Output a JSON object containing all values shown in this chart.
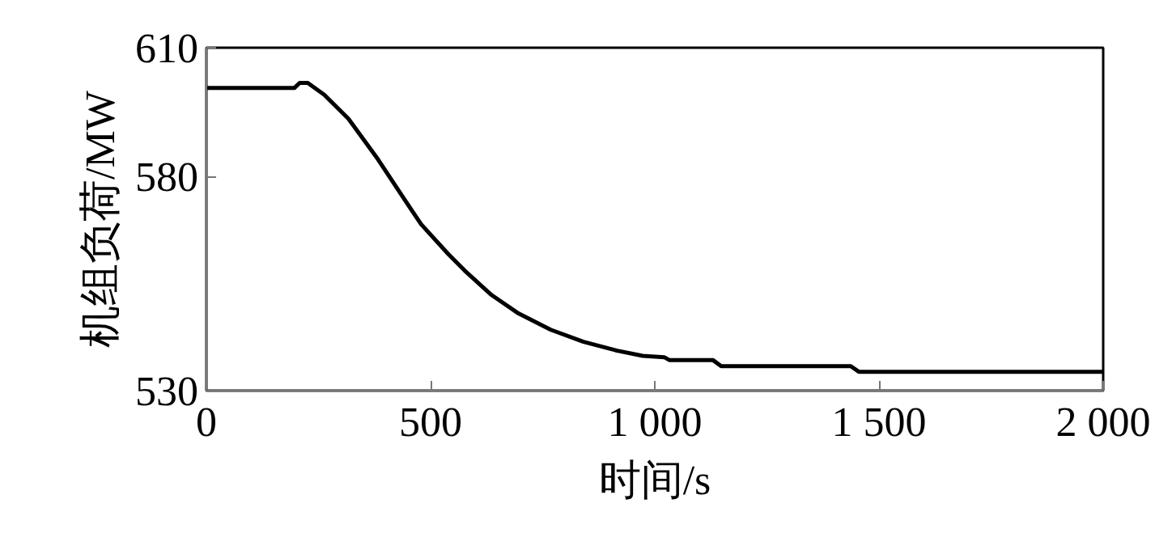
{
  "chart_data": {
    "type": "line",
    "xlabel": "时间/s",
    "ylabel": "机组负荷/MW",
    "x": [
      0,
      196,
      208,
      226,
      263,
      317,
      383,
      443,
      479,
      540,
      576,
      636,
      696,
      768,
      841,
      913,
      973,
      1021,
      1033,
      1130,
      1148,
      1437,
      1455,
      2000
    ],
    "series": [
      {
        "color": "#000000",
        "values": [
          600.6,
          600.6,
          601.8,
          601.8,
          599.0,
          593.4,
          583.9,
          574.4,
          568.8,
          561.8,
          558.0,
          552.3,
          548.0,
          544.2,
          541.4,
          539.4,
          538.1,
          537.8,
          537.1,
          537.1,
          535.7,
          535.7,
          534.4,
          534.4
        ]
      }
    ],
    "xlim": [
      0,
      2000
    ],
    "ylim": [
      530,
      610
    ],
    "xticks": [
      0,
      500,
      {
        "value": 1000,
        "label": "1 000"
      },
      {
        "value": 1500,
        "label": "1 500"
      },
      {
        "value": 2000,
        "label": "2 000"
      }
    ],
    "yticks": [
      530,
      580,
      610
    ],
    "grid": false,
    "marker": "none",
    "line_style": "solid"
  }
}
